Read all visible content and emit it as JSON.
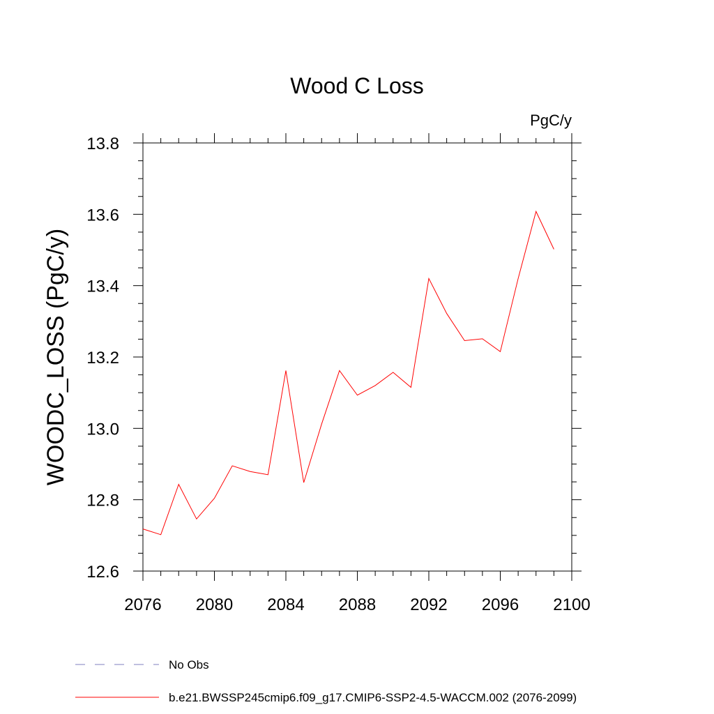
{
  "chart_data": {
    "type": "line",
    "title": "Wood C Loss",
    "units_label": "PgC/y",
    "ylabel": "WOODC_LOSS  (PgC/y)",
    "xlabel": "",
    "xlim": [
      2076,
      2100
    ],
    "ylim": [
      12.6,
      13.8
    ],
    "x_ticks": [
      2076,
      2080,
      2084,
      2088,
      2092,
      2096,
      2100
    ],
    "x_tick_labels": [
      "2076",
      "2080",
      "2084",
      "2088",
      "2092",
      "2096",
      "2100"
    ],
    "y_ticks": [
      12.6,
      12.8,
      13.0,
      13.2,
      13.4,
      13.6,
      13.8
    ],
    "y_tick_labels": [
      "12.6",
      "12.8",
      "13.0",
      "13.2",
      "13.4",
      "13.6",
      "13.8"
    ],
    "grid": false,
    "legend_position": "bottom",
    "series": [
      {
        "name": "b.e21.BWSSP245cmip6.f09_g17.CMIP6-SSP2-4.5-WACCM.002 (2076-2099)",
        "color": "#ff0000",
        "dash": "solid",
        "x": [
          2076,
          2077,
          2078,
          2079,
          2080,
          2081,
          2082,
          2083,
          2084,
          2085,
          2086,
          2087,
          2088,
          2089,
          2090,
          2091,
          2092,
          2093,
          2094,
          2095,
          2096,
          2097,
          2098,
          2099
        ],
        "values": [
          12.718,
          12.702,
          12.843,
          12.746,
          12.804,
          12.895,
          12.879,
          12.87,
          13.162,
          12.848,
          13.012,
          13.162,
          13.093,
          13.12,
          13.157,
          13.115,
          13.42,
          13.322,
          13.246,
          13.251,
          13.215,
          13.42,
          13.608,
          13.502
        ]
      }
    ],
    "legend": [
      {
        "label": "No Obs",
        "color": "#7f7fbf",
        "dash": "dashed"
      },
      {
        "label": "b.e21.BWSSP245cmip6.f09_g17.CMIP6-SSP2-4.5-WACCM.002 (2076-2099)",
        "color": "#ff0000",
        "dash": "solid"
      }
    ]
  }
}
